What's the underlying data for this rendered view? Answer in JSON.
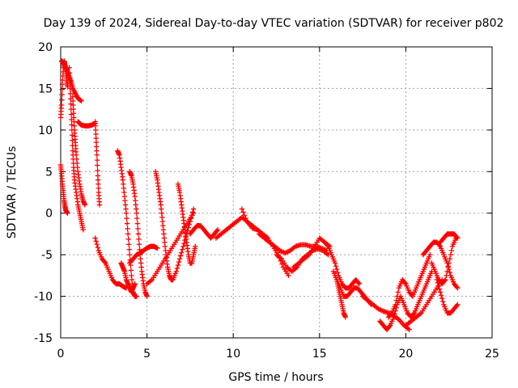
{
  "chart_data": {
    "type": "scatter",
    "title": "Day 139 of 2024, Sidereal Day-to-day VTEC variation (SDTVAR) for receiver p802",
    "xlabel": "GPS time / hours",
    "ylabel": "SDTVAR / TECUs",
    "xlim": [
      0,
      25
    ],
    "ylim": [
      -15,
      20
    ],
    "xticks": [
      "0",
      "5",
      "10",
      "15",
      "20",
      "25"
    ],
    "xtick_values": [
      0,
      5,
      10,
      15,
      20,
      25
    ],
    "yticks": [
      "-15",
      "-10",
      "-5",
      "0",
      "5",
      "10",
      "15",
      "20"
    ],
    "ytick_values": [
      -15,
      -10,
      -5,
      0,
      5,
      10,
      15,
      20
    ],
    "grid": true,
    "legend": "none",
    "marker": "plus",
    "color": "#ff0000",
    "series": [
      {
        "name": "s1",
        "x": [
          0.0,
          0.05,
          0.1,
          0.15,
          0.2,
          0.25,
          0.3,
          0.35,
          0.4
        ],
        "y": [
          11.5,
          13.0,
          15.5,
          17.5,
          18.3,
          17.8,
          17.0,
          16.0,
          15.2
        ]
      },
      {
        "name": "s2",
        "x": [
          0.05,
          0.1,
          0.2,
          0.3,
          0.4,
          0.5,
          0.6,
          0.7,
          0.85,
          1.0,
          1.2
        ],
        "y": [
          18.3,
          18.2,
          18.0,
          17.5,
          17.0,
          16.4,
          15.8,
          15.0,
          14.4,
          13.8,
          13.5
        ]
      },
      {
        "name": "s3",
        "x": [
          0.0,
          0.05,
          0.1,
          0.15,
          0.2,
          0.25,
          0.3,
          0.4
        ],
        "y": [
          5.8,
          4.8,
          3.5,
          2.5,
          1.5,
          0.8,
          0.3,
          0.0
        ]
      },
      {
        "name": "s4",
        "x": [
          0.5,
          0.55,
          0.6,
          0.65,
          0.7,
          0.75,
          0.8,
          0.9,
          1.0,
          1.1,
          1.2,
          1.3
        ],
        "y": [
          17.5,
          15.0,
          12.5,
          10.0,
          7.5,
          5.5,
          4.0,
          2.5,
          1.0,
          0.0,
          -1.0,
          -2.0
        ]
      },
      {
        "name": "s5",
        "x": [
          0.7,
          0.75,
          0.8,
          0.85,
          0.9,
          1.0,
          1.1,
          1.2,
          1.3,
          1.4
        ],
        "y": [
          14.0,
          12.0,
          10.0,
          8.5,
          7.0,
          5.0,
          3.5,
          2.3,
          1.5,
          1.0
        ]
      },
      {
        "name": "s6",
        "x": [
          1.0,
          1.1,
          1.2,
          1.4,
          1.6,
          1.8,
          2.0
        ],
        "y": [
          11.0,
          10.8,
          10.6,
          10.5,
          10.5,
          10.6,
          10.8
        ]
      },
      {
        "name": "s7",
        "x": [
          2.0,
          2.05,
          2.1,
          2.15,
          2.2,
          2.25
        ],
        "y": [
          11.0,
          9.0,
          7.0,
          4.5,
          2.5,
          1.0
        ]
      },
      {
        "name": "s8",
        "x": [
          2.0,
          2.2,
          2.4,
          2.6,
          2.8,
          3.0,
          3.2,
          3.4,
          3.6,
          3.8
        ],
        "y": [
          -3.0,
          -4.5,
          -5.5,
          -6.0,
          -7.0,
          -8.0,
          -8.5,
          -8.5,
          -8.8,
          -9.0
        ]
      },
      {
        "name": "s9",
        "x": [
          3.3,
          3.4,
          3.5,
          3.6,
          3.7,
          3.8,
          3.9,
          4.0,
          4.1,
          4.2,
          4.3,
          4.4
        ],
        "y": [
          7.5,
          7.0,
          5.5,
          4.0,
          2.0,
          0.0,
          -2.5,
          -5.0,
          -7.5,
          -9.5,
          -10.0,
          -10.0
        ]
      },
      {
        "name": "s10",
        "x": [
          4.0,
          4.1,
          4.2,
          4.3,
          4.4,
          4.5,
          4.6,
          4.7,
          4.8,
          4.9,
          5.0
        ],
        "y": [
          5.0,
          4.5,
          3.5,
          2.0,
          0.0,
          -2.5,
          -5.0,
          -7.0,
          -8.5,
          -9.5,
          -10.0
        ]
      },
      {
        "name": "s11",
        "x": [
          3.5,
          3.6,
          3.7,
          3.8,
          3.9,
          4.0,
          4.1,
          4.2,
          4.3
        ],
        "y": [
          -6.0,
          -6.5,
          -7.0,
          -8.0,
          -8.5,
          -9.0,
          -9.5,
          -9.0,
          -8.5
        ]
      },
      {
        "name": "s12",
        "x": [
          4.0,
          4.2,
          4.4,
          4.6,
          4.8,
          5.0,
          5.2,
          5.4,
          5.6
        ],
        "y": [
          -6.0,
          -5.5,
          -5.0,
          -4.8,
          -4.5,
          -4.2,
          -4.0,
          -4.0,
          -4.2
        ]
      },
      {
        "name": "s13",
        "x": [
          5.5,
          5.6,
          5.7,
          5.8,
          5.9,
          6.0,
          6.1,
          6.2,
          6.3,
          6.4,
          6.5
        ],
        "y": [
          5.0,
          4.0,
          2.5,
          1.0,
          -1.0,
          -3.0,
          -5.0,
          -6.5,
          -7.5,
          -8.0,
          -8.0
        ]
      },
      {
        "name": "s14",
        "x": [
          5.0,
          5.3,
          5.6,
          5.9,
          6.2,
          6.5,
          6.8,
          7.1,
          7.4,
          7.7
        ],
        "y": [
          -8.5,
          -8.0,
          -7.0,
          -6.0,
          -5.0,
          -4.0,
          -3.0,
          -2.0,
          -1.0,
          0.0
        ]
      },
      {
        "name": "s15",
        "x": [
          6.5,
          6.7,
          6.9,
          7.1,
          7.3,
          7.5,
          7.7
        ],
        "y": [
          -8.0,
          -7.0,
          -5.5,
          -4.0,
          -2.5,
          -1.0,
          0.5
        ]
      },
      {
        "name": "s16",
        "x": [
          6.8,
          6.9,
          7.0,
          7.1,
          7.2,
          7.3,
          7.4,
          7.5,
          7.6,
          7.7,
          7.8
        ],
        "y": [
          3.5,
          2.5,
          1.0,
          -0.5,
          -2.0,
          -3.5,
          -5.0,
          -6.0,
          -6.0,
          -5.0,
          -4.0
        ]
      },
      {
        "name": "s17",
        "x": [
          7.5,
          7.7,
          7.9,
          8.1,
          8.3,
          8.5,
          8.7,
          8.9,
          9.1
        ],
        "y": [
          -2.5,
          -2.0,
          -1.5,
          -1.5,
          -2.0,
          -2.5,
          -3.0,
          -2.5,
          -2.0
        ]
      },
      {
        "name": "s18",
        "x": [
          9.0,
          9.3,
          9.6,
          9.9,
          10.2,
          10.5,
          10.8,
          11.1,
          11.4,
          11.7,
          12.0
        ],
        "y": [
          -3.0,
          -2.5,
          -2.0,
          -1.5,
          -1.0,
          -0.5,
          -1.0,
          -1.5,
          -2.0,
          -2.5,
          -3.0
        ]
      },
      {
        "name": "s19",
        "x": [
          10.5,
          10.8,
          11.1,
          11.4,
          11.7,
          12.0,
          12.3,
          12.6,
          12.9,
          13.2
        ],
        "y": [
          0.5,
          -1.0,
          -1.8,
          -2.0,
          -2.5,
          -3.0,
          -4.0,
          -5.0,
          -6.5,
          -7.5
        ]
      },
      {
        "name": "s20",
        "x": [
          11.5,
          11.8,
          12.1,
          12.4,
          12.7,
          13.0,
          13.3,
          13.6,
          13.9,
          14.2,
          14.5,
          14.8,
          15.1,
          15.4
        ],
        "y": [
          -2.5,
          -3.0,
          -3.5,
          -4.0,
          -4.5,
          -4.8,
          -4.5,
          -4.0,
          -3.8,
          -3.8,
          -4.0,
          -4.0,
          -4.2,
          -4.5
        ]
      },
      {
        "name": "s21",
        "x": [
          12.5,
          12.8,
          13.1,
          13.4,
          13.7,
          14.0,
          14.3,
          14.6,
          14.9,
          15.2,
          15.5
        ],
        "y": [
          -5.0,
          -5.5,
          -6.5,
          -7.0,
          -6.5,
          -5.5,
          -5.0,
          -4.5,
          -4.3,
          -4.5,
          -5.0
        ]
      },
      {
        "name": "s22",
        "x": [
          13.5,
          13.8,
          14.1,
          14.4,
          14.7,
          15.0,
          15.3,
          15.6
        ],
        "y": [
          -6.5,
          -6.0,
          -5.5,
          -5.0,
          -4.0,
          -3.0,
          -3.5,
          -4.0
        ]
      },
      {
        "name": "s23",
        "x": [
          15.3,
          15.5,
          15.7,
          15.9,
          16.1,
          16.3,
          16.5,
          16.7,
          16.9,
          17.1,
          17.3
        ],
        "y": [
          -3.5,
          -4.0,
          -5.0,
          -6.0,
          -7.5,
          -8.5,
          -9.0,
          -9.0,
          -8.5,
          -8.0,
          -8.5
        ]
      },
      {
        "name": "s24",
        "x": [
          15.8,
          16.0,
          16.2,
          16.4,
          16.6,
          16.8,
          17.0,
          17.2,
          17.4,
          17.6,
          17.8,
          18.0
        ],
        "y": [
          -7.0,
          -8.0,
          -9.0,
          -10.0,
          -10.0,
          -9.5,
          -9.0,
          -9.0,
          -9.5,
          -10.0,
          -10.5,
          -11.0
        ]
      },
      {
        "name": "s25",
        "x": [
          16.0,
          16.1,
          16.2,
          16.3,
          16.4,
          16.5
        ],
        "y": [
          -8.0,
          -9.0,
          -10.0,
          -11.0,
          -12.0,
          -12.5
        ]
      },
      {
        "name": "s26",
        "x": [
          17.5,
          17.8,
          18.1,
          18.4,
          18.7,
          19.0,
          19.3,
          19.6,
          19.9,
          20.2
        ],
        "y": [
          -10.0,
          -10.5,
          -11.0,
          -11.5,
          -11.8,
          -12.0,
          -12.3,
          -12.8,
          -13.5,
          -14.0
        ]
      },
      {
        "name": "s27",
        "x": [
          18.5,
          18.7,
          18.9,
          19.1,
          19.3,
          19.5,
          19.7,
          19.9,
          20.1,
          20.3,
          20.5,
          20.7,
          20.9,
          21.1,
          21.3,
          21.5
        ],
        "y": [
          -13.0,
          -13.5,
          -14.0,
          -13.5,
          -12.5,
          -11.0,
          -10.0,
          -11.0,
          -12.0,
          -12.5,
          -12.0,
          -11.0,
          -10.0,
          -9.0,
          -8.0,
          -7.0
        ]
      },
      {
        "name": "s28",
        "x": [
          19.0,
          19.2,
          19.4,
          19.6,
          19.8,
          20.0,
          20.2,
          20.4,
          20.6,
          20.8,
          21.0,
          21.2,
          21.4
        ],
        "y": [
          -12.5,
          -12.0,
          -11.0,
          -9.0,
          -8.0,
          -8.5,
          -9.5,
          -10.0,
          -9.0,
          -8.0,
          -7.0,
          -6.0,
          -5.0
        ]
      },
      {
        "name": "s29",
        "x": [
          20.0,
          20.3,
          20.6,
          20.9,
          21.2,
          21.5,
          21.8,
          22.1
        ],
        "y": [
          -13.5,
          -13.0,
          -12.5,
          -12.0,
          -11.0,
          -10.0,
          -9.0,
          -8.0
        ]
      },
      {
        "name": "s30",
        "x": [
          21.0,
          21.2,
          21.4,
          21.6,
          21.8,
          22.0,
          22.2,
          22.4,
          22.6,
          22.8,
          23.0
        ],
        "y": [
          -5.0,
          -4.5,
          -4.0,
          -3.5,
          -3.5,
          -4.0,
          -5.0,
          -6.0,
          -7.5,
          -8.5,
          -9.0
        ]
      },
      {
        "name": "s31",
        "x": [
          21.5,
          21.7,
          21.9,
          22.1,
          22.3,
          22.5,
          22.7,
          22.9
        ],
        "y": [
          -6.0,
          -7.0,
          -8.0,
          -8.5,
          -8.0,
          -6.0,
          -4.0,
          -3.0
        ]
      },
      {
        "name": "s32",
        "x": [
          22.0,
          22.2,
          22.4,
          22.6,
          22.8,
          23.0
        ],
        "y": [
          -3.5,
          -3.0,
          -2.5,
          -2.5,
          -2.5,
          -3.0
        ]
      },
      {
        "name": "s33",
        "x": [
          21.8,
          22.0,
          22.2,
          22.4,
          22.6,
          22.8,
          23.0
        ],
        "y": [
          -8.0,
          -9.5,
          -11.0,
          -12.0,
          -12.0,
          -11.5,
          -11.0
        ]
      }
    ]
  }
}
